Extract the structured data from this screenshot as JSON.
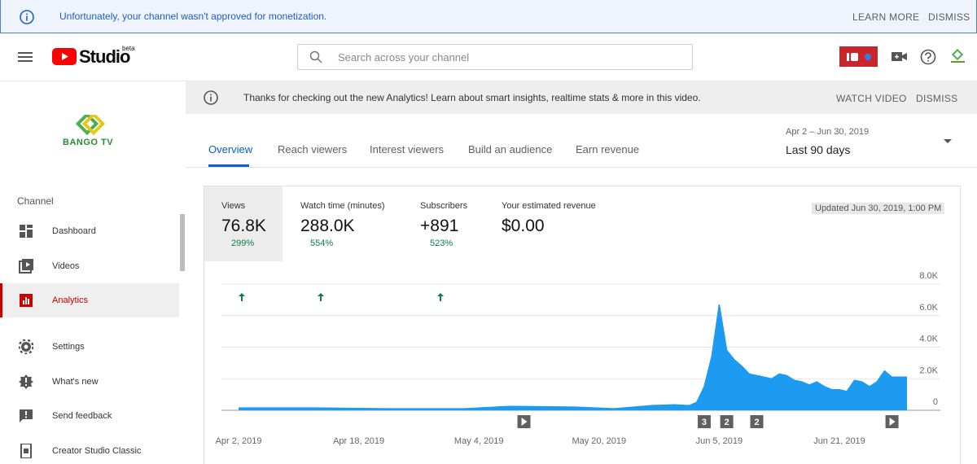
{
  "banner": {
    "message": "Unfortunately, your channel wasn't approved for monetization.",
    "actions": [
      "LEARN MORE",
      "DISMISS"
    ]
  },
  "header": {
    "logo": "Studio",
    "badge": "beta",
    "search_placeholder": "Search across your channel"
  },
  "notice": {
    "message": "Thanks for checking out the new Analytics! Learn about smart insights, realtime stats & more in this video.",
    "actions": [
      "WATCH VIDEO",
      "DISMISS"
    ]
  },
  "sidebar": {
    "channel_name": "BANGO TV",
    "section": "Channel",
    "items": [
      "Dashboard",
      "Videos",
      "Analytics",
      "Settings",
      "What's new",
      "Send feedback",
      "Creator Studio Classic"
    ],
    "active": 2
  },
  "tabs": {
    "items": [
      "Overview",
      "Reach viewers",
      "Interest viewers",
      "Build an audience",
      "Earn revenue"
    ],
    "active": 0
  },
  "date_range": {
    "range": "Apr 2 – Jun 30, 2019",
    "preset": "Last 90 days"
  },
  "metrics": [
    {
      "label": "Views",
      "value": "76.8K",
      "change": "299%"
    },
    {
      "label": "Watch time (minutes)",
      "value": "288.0K",
      "change": "554%"
    },
    {
      "label": "Subscribers",
      "value": "+891",
      "change": "523%"
    },
    {
      "label": "Your estimated revenue",
      "value": "$0.00"
    }
  ],
  "updated": "Updated Jun 30, 2019, 1:00 PM",
  "chart_data": {
    "type": "area",
    "color": "#1c9bf1",
    "x": [
      0,
      10,
      20,
      30,
      36,
      45,
      50,
      55,
      58,
      60,
      61,
      62,
      63,
      64,
      65,
      66,
      67,
      68,
      69,
      70,
      71,
      72,
      73,
      74,
      75,
      76,
      77,
      78,
      79,
      80,
      81,
      82,
      83,
      84,
      85,
      86,
      87,
      88,
      89
    ],
    "values": [
      150,
      150,
      100,
      100,
      250,
      200,
      100,
      300,
      350,
      300,
      500,
      1500,
      3400,
      6700,
      3800,
      3200,
      2800,
      2300,
      2200,
      2100,
      2000,
      2300,
      2200,
      1900,
      1800,
      1600,
      1800,
      1500,
      1300,
      1300,
      1200,
      1900,
      1800,
      1500,
      1800,
      2500,
      2100,
      2100,
      2100
    ],
    "xlim": [
      0,
      89
    ],
    "xticks": [
      {
        "value": 0,
        "label": "Apr 2, 2019"
      },
      {
        "value": 16,
        "label": "Apr 18, 2019"
      },
      {
        "value": 32,
        "label": "May 4, 2019"
      },
      {
        "value": 48,
        "label": "May 20, 2019"
      },
      {
        "value": 64,
        "label": "Jun 5, 2019"
      },
      {
        "value": 80,
        "label": "Jun 21, 2019"
      }
    ],
    "ylim": [
      0,
      8000
    ],
    "yticks": [
      0,
      {
        "value": 2000,
        "label": "2.0K"
      },
      {
        "value": 4000,
        "label": "4.0K"
      },
      {
        "value": 6000,
        "label": "6.0K"
      },
      {
        "value": 8000,
        "label": "8.0K"
      }
    ],
    "grid": true,
    "markers": [
      {
        "x": 38
      },
      {
        "x": 62,
        "label": "3"
      },
      {
        "x": 65,
        "label": "2"
      },
      {
        "x": 69,
        "label": "2"
      },
      {
        "x": 87
      }
    ]
  }
}
